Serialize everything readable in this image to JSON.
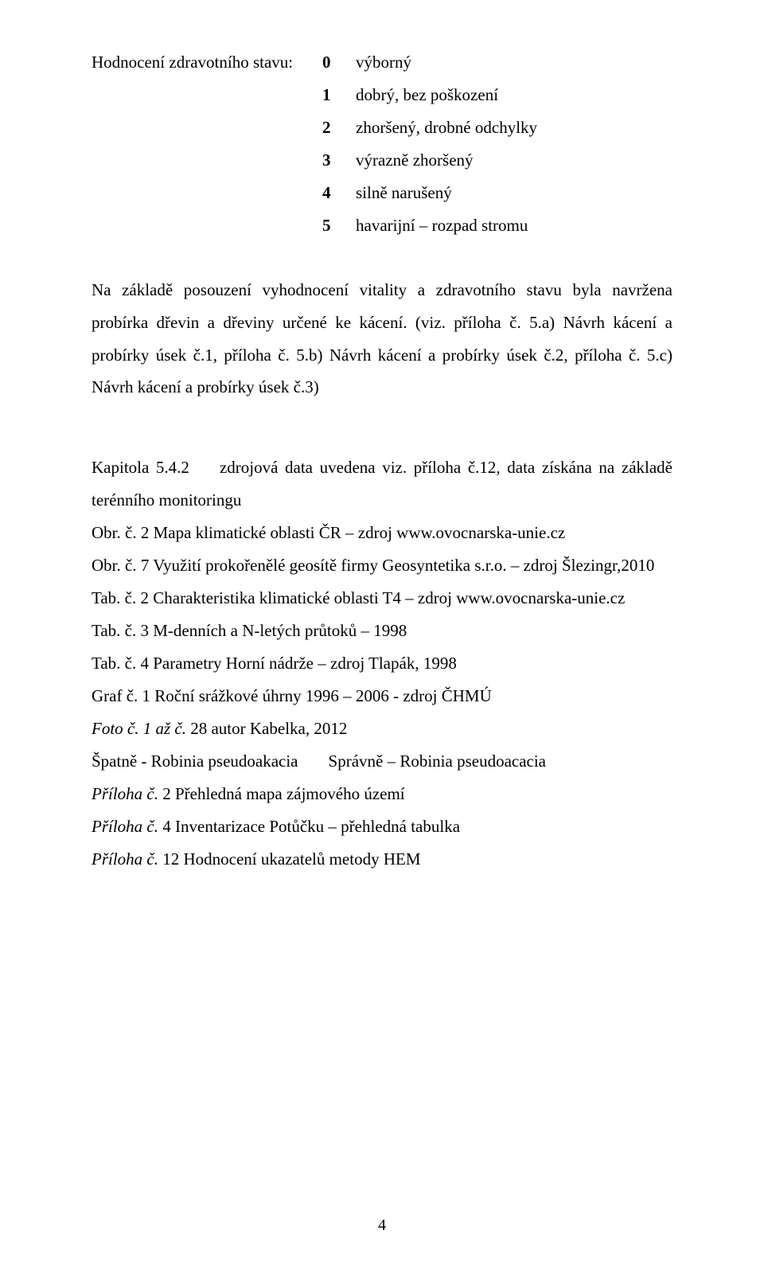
{
  "rating": {
    "label": "Hodnocení zdravotního stavu:",
    "items": [
      {
        "num": "0",
        "desc": "výborný"
      },
      {
        "num": "1",
        "desc": "dobrý, bez poškození"
      },
      {
        "num": "2",
        "desc": "zhoršený, drobné odchylky"
      },
      {
        "num": "3",
        "desc": "výrazně zhoršený"
      },
      {
        "num": "4",
        "desc": "silně narušený"
      },
      {
        "num": "5",
        "desc": "havarijní – rozpad stromu"
      }
    ]
  },
  "para1": "Na základě posouzení vyhodnocení vitality a zdravotního stavu byla navržena probírka dřevin a dřeviny určené ke kácení. (viz. příloha č. 5.a) Návrh kácení a probírky úsek č.1,  příloha č. 5.b) Návrh kácení a probírky úsek č.2, příloha č. 5.c) Návrh kácení a probírky úsek č.3)",
  "kap": {
    "lead": "Kapitola 5.4.2",
    "rest": "zdrojová data uvedena viz. příloha č.12, data získána na základě terénního monitoringu"
  },
  "lines": {
    "l1": "Obr. č.  2   Mapa klimatické oblasti ČR – zdroj www.ovocnarska-unie.cz",
    "l2": "Obr. č.  7  Využití prokořenělé geosítě firmy Geosyntetika s.r.o. – zdroj Šlezingr,2010",
    "l3": "Tab. č.  2  Charakteristika klimatické oblasti T4 – zdroj www.ovocnarska-unie.cz",
    "l4": "Tab. č.  3  M-denních a  N-letých průtoků – 1998",
    "l5": "Tab. č.  4  Parametry Horní nádrže – zdroj Tlapák, 1998",
    "l6": "Graf č.  1  Roční srážkové úhrny 1996 – 2006 - zdroj ČHMÚ",
    "l7a": "Foto č. 1 až č.",
    "l7b": " 28   autor Kabelka, 2012",
    "l8a": "Špatně  - Robinia pseudoakacia",
    "l8b": "Správně – Robinia pseudoacacia",
    "l9a": "Příloha č.",
    "l9b": " 2   Přehledná mapa zájmového území",
    "l10a": "Příloha č.",
    "l10b": " 4   Inventarizace Potůčku – přehledná tabulka",
    "l11a": "Příloha č.",
    "l11b": " 12  Hodnocení ukazatelů metody HEM"
  },
  "pageNumber": "4"
}
